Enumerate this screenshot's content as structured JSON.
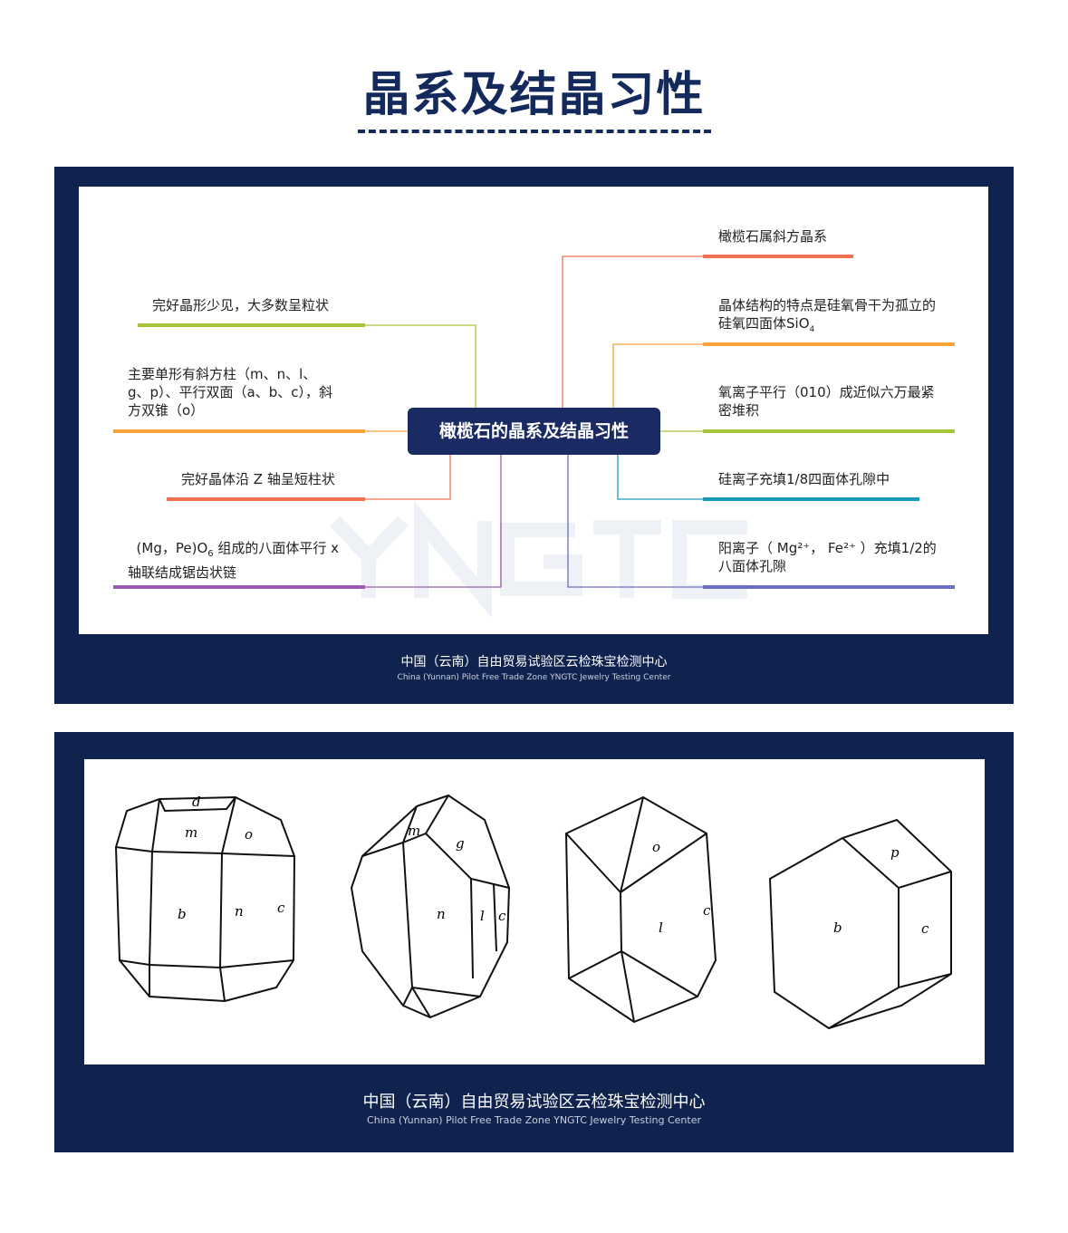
{
  "title": "晶系及结晶习性",
  "mindmap": {
    "center": "橄榄石的晶系及结晶习性",
    "left": [
      {
        "text": "完好晶形少见，大多数呈粒状",
        "color": "#a6c53a"
      },
      {
        "text": "主要单形有斜方柱（m、n、l、g、p）、平行双面（a、b、c），斜方双锥（o）",
        "color": "#f5a23a"
      },
      {
        "text": "完好晶体沿 Z 轴呈短柱状",
        "color": "#f07050"
      },
      {
        "text": "(Mg，Pe)O",
        "sub": "6",
        "text2": " 组成的八面体平行 x 轴联结成锯齿状链",
        "color": "#9a5bb0"
      }
    ],
    "right": [
      {
        "text": "橄榄石属斜方晶系",
        "color": "#f07050"
      },
      {
        "text": "晶体结构的特点是硅氧骨干为孤立的硅氧四面体SiO",
        "sub": "4",
        "color": "#f5a23a"
      },
      {
        "text": "氧离子平行（010）成近似六万最紧密堆积",
        "color": "#a6c53a"
      },
      {
        "text": "硅离子充填1/8四面体孔隙中",
        "color": "#1a9bbb"
      },
      {
        "text": "阳离子（ Mg²⁺， Fe²⁺ ）充填1/2的八面体孔隙",
        "color": "#6b6fc0"
      }
    ]
  },
  "footer": {
    "cn": "中国（云南）自由贸易试验区云检珠宝检测中心",
    "en": "China (Yunnan) Pilot Free Trade Zone  YNGTC Jewelry Testing Center"
  },
  "watermark": "YNGTC",
  "crystals": [
    {
      "labels": [
        "d",
        "m",
        "o",
        "b",
        "n",
        "c"
      ]
    },
    {
      "labels": [
        "m",
        "g",
        "n",
        "l",
        "c"
      ]
    },
    {
      "labels": [
        "o",
        "l",
        "c"
      ]
    },
    {
      "labels": [
        "p",
        "b",
        "c"
      ]
    }
  ]
}
